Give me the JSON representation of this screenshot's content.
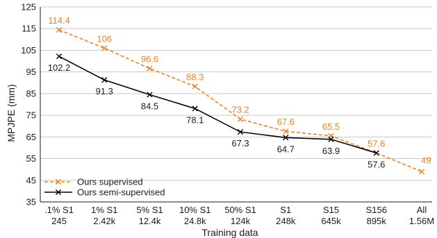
{
  "chart_data": {
    "type": "line",
    "title": "",
    "xlabel": "Training data",
    "ylabel": "MPJPE (mm)",
    "ylim": [
      35,
      125
    ],
    "yticks": [
      35,
      45,
      55,
      65,
      75,
      85,
      95,
      105,
      115,
      125
    ],
    "grid": "horizontal",
    "legend_position": "bottom-left",
    "categories": [
      [
        ".1% S1",
        "245"
      ],
      [
        "1% S1",
        "2.42k"
      ],
      [
        "5% S1",
        "12.4k"
      ],
      [
        "10% S1",
        "24.8k"
      ],
      [
        "50% S1",
        "124k"
      ],
      [
        "S1",
        "248k"
      ],
      [
        "S15",
        "645k"
      ],
      [
        "S156",
        "895k"
      ],
      [
        "All",
        "1.56M"
      ]
    ],
    "series": [
      {
        "name": "Ours supervised",
        "color": "#f0821e",
        "line_style": "dashed",
        "marker": "x",
        "values": [
          114.4,
          106,
          96.6,
          88.3,
          73.2,
          67.6,
          65.5,
          57.6,
          49
        ],
        "labels": [
          "114.4",
          "106",
          "96.6",
          "88.3",
          "73.2",
          "67.6",
          "65.5",
          "57.6",
          "49"
        ]
      },
      {
        "name": "Ours semi-supervised",
        "color": "#000000",
        "line_style": "solid",
        "marker": "x",
        "values": [
          102.2,
          91.3,
          84.5,
          78.1,
          67.3,
          64.7,
          63.9,
          57.6,
          null
        ],
        "labels": [
          "102.2",
          "91.3",
          "84.5",
          "78.1",
          "67.3",
          "64.7",
          "63.9",
          "57.6",
          null
        ]
      }
    ]
  }
}
